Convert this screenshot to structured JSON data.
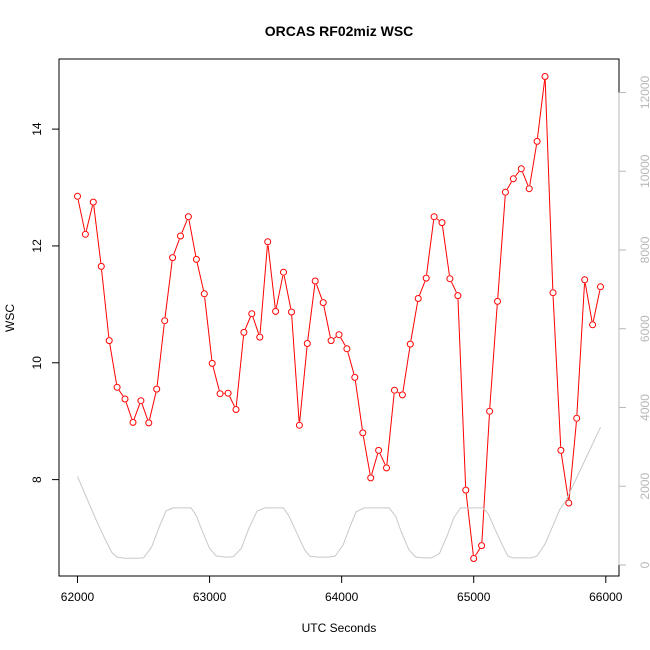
{
  "chart_data": {
    "type": "line",
    "title": "ORCAS RF02miz WSC",
    "xlabel": "UTC Seconds",
    "ylabel": "WSC",
    "xlim": [
      61860,
      66100
    ],
    "ylim": [
      6.35,
      15.2
    ],
    "y2lim": [
      -280,
      12850
    ],
    "x_ticks": [
      62000,
      63000,
      64000,
      65000,
      66000
    ],
    "x_tick_labels": [
      "62000",
      "63000",
      "64000",
      "65000",
      "66000"
    ],
    "y_ticks": [
      8,
      10,
      12,
      14
    ],
    "y_tick_labels": [
      "8",
      "10",
      "12",
      "14"
    ],
    "y2_ticks": [
      0,
      2000,
      4000,
      6000,
      8000,
      10000,
      12000
    ],
    "y2_tick_labels": [
      "0",
      "2000",
      "4000",
      "6000",
      "8000",
      "10000",
      "12000"
    ],
    "grid": false,
    "colors": {
      "primary": "#ff0000",
      "secondary": "#c8c8c8",
      "axis": "#000000",
      "axis_right": "#b8b8b8"
    },
    "series": [
      {
        "axis": "left",
        "style": "line+open-circle",
        "color": "#ff0000",
        "x": [
          62000,
          62060,
          62120,
          62180,
          62240,
          62300,
          62360,
          62420,
          62480,
          62540,
          62600,
          62660,
          62720,
          62780,
          62840,
          62900,
          62960,
          63020,
          63080,
          63140,
          63200,
          63260,
          63320,
          63380,
          63440,
          63500,
          63560,
          63620,
          63680,
          63740,
          63800,
          63860,
          63920,
          63980,
          64040,
          64100,
          64160,
          64220,
          64280,
          64340,
          64400,
          64460,
          64520,
          64580,
          64640,
          64700,
          64760,
          64820,
          64880,
          64940,
          65000,
          65060,
          65120,
          65180,
          65240,
          65300,
          65360,
          65420,
          65480,
          65540,
          65600,
          65660,
          65720,
          65780,
          65840,
          65900,
          65960
        ],
        "y": [
          12.85,
          12.2,
          12.75,
          11.65,
          10.38,
          9.58,
          9.38,
          8.98,
          9.35,
          8.97,
          9.55,
          10.72,
          11.8,
          12.17,
          12.5,
          11.77,
          11.18,
          9.99,
          9.47,
          9.48,
          9.2,
          10.52,
          10.84,
          10.44,
          12.07,
          10.88,
          11.55,
          10.87,
          8.93,
          10.33,
          11.4,
          11.03,
          10.38,
          10.48,
          10.24,
          9.75,
          8.8,
          8.03,
          8.5,
          8.2,
          9.53,
          9.45,
          10.32,
          11.1,
          11.45,
          12.5,
          12.4,
          11.44,
          11.15,
          7.82,
          6.65,
          6.87,
          9.17,
          11.05,
          12.92,
          13.15,
          13.32,
          12.98,
          13.79,
          14.9,
          11.2,
          8.5,
          7.6,
          9.05,
          11.42,
          10.65,
          11.3
        ]
      },
      {
        "axis": "right",
        "style": "line",
        "color": "#c8c8c8",
        "x": [
          62000,
          62070,
          62140,
          62210,
          62260,
          62300,
          62360,
          62450,
          62500,
          62560,
          62620,
          62670,
          62720,
          62780,
          62860,
          62900,
          62940,
          63000,
          63050,
          63120,
          63180,
          63240,
          63300,
          63360,
          63420,
          63480,
          63560,
          63600,
          63660,
          63720,
          63760,
          63820,
          63900,
          63950,
          64010,
          64060,
          64110,
          64170,
          64220,
          64290,
          64360,
          64410,
          64450,
          64510,
          64560,
          64620,
          64680,
          64740,
          64800,
          64850,
          64900,
          64960,
          65020,
          65070,
          65110,
          65160,
          65220,
          65260,
          65300,
          65360,
          65440,
          65480,
          65540,
          65600,
          65650,
          65700,
          65960
        ],
        "y": [
          2250,
          1700,
          1150,
          650,
          320,
          200,
          170,
          170,
          180,
          450,
          980,
          1370,
          1450,
          1450,
          1450,
          1250,
          900,
          420,
          230,
          200,
          210,
          420,
          950,
          1370,
          1450,
          1450,
          1450,
          1250,
          820,
          380,
          220,
          200,
          200,
          220,
          500,
          950,
          1350,
          1450,
          1450,
          1450,
          1450,
          1230,
          850,
          380,
          200,
          180,
          180,
          290,
          750,
          1200,
          1450,
          1450,
          1450,
          1450,
          1300,
          920,
          480,
          220,
          180,
          180,
          180,
          230,
          530,
          1000,
          1400,
          1650,
          3500
        ]
      }
    ]
  }
}
